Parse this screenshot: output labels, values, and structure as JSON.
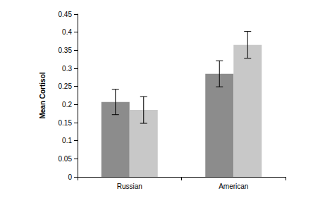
{
  "chart_data": {
    "type": "bar",
    "y_label": "Mean Cortisol",
    "categories": [
      "Russian",
      "American"
    ],
    "series": [
      {
        "color": "#8c8c8c",
        "values": [
          0.207,
          0.285
        ],
        "errors": [
          0.035,
          0.036
        ]
      },
      {
        "color": "#c8c8c8",
        "values": [
          0.185,
          0.365
        ],
        "errors": [
          0.037,
          0.037
        ]
      }
    ],
    "ylim": [
      0,
      0.45
    ],
    "yticks": [
      0,
      0.05,
      0.1,
      0.15,
      0.2,
      0.25,
      0.3,
      0.35,
      0.4,
      0.45
    ],
    "grid": false
  }
}
